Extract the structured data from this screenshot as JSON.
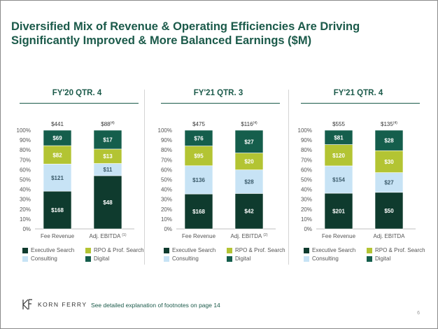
{
  "slide": {
    "title_line1": "Diversified Mix of Revenue & Operating Efficiencies Are Driving",
    "title_line2": "Significantly Improved & More Balanced Earnings ($M)",
    "footnote": "See detailed explanation of footnotes on page 14",
    "logo_text": "KORN FERRY",
    "page_number": "6"
  },
  "colors": {
    "title": "#1b5a4a",
    "executive_search": "#0f3b2e",
    "rpo_prof_search": "#b3c433",
    "consulting": "#c7e3f5",
    "digital": "#155e4c"
  },
  "legend": [
    "Executive Search",
    "RPO & Prof. Search",
    "Consulting",
    "Digital"
  ],
  "chart_data": [
    {
      "type": "bar",
      "stacked": "percent",
      "title": "FY'20 QTR. 4",
      "categories": [
        "Fee Revenue",
        "Adj. EBITDA"
      ],
      "category_superscripts": [
        "",
        "(1)"
      ],
      "totals": [
        "$441",
        "$88"
      ],
      "total_superscripts": [
        "",
        "(4)"
      ],
      "ylim": [
        0,
        100
      ],
      "yticks": [
        "0%",
        "10%",
        "20%",
        "30%",
        "40%",
        "50%",
        "60%",
        "70%",
        "80%",
        "90%",
        "100%"
      ],
      "series": [
        {
          "name": "Executive Search",
          "values": [
            168,
            48
          ],
          "labels": [
            "$168",
            "$48"
          ]
        },
        {
          "name": "Consulting",
          "values": [
            121,
            11
          ],
          "labels": [
            "$121",
            "$11"
          ]
        },
        {
          "name": "RPO & Prof. Search",
          "values": [
            82,
            13
          ],
          "labels": [
            "$82",
            "$13"
          ]
        },
        {
          "name": "Digital",
          "values": [
            69,
            17
          ],
          "labels": [
            "$69",
            "$17"
          ]
        }
      ]
    },
    {
      "type": "bar",
      "stacked": "percent",
      "title": "FY'21 QTR. 3",
      "categories": [
        "Fee Revenue",
        "Adj. EBITDA"
      ],
      "category_superscripts": [
        "",
        "(2)"
      ],
      "totals": [
        "$475",
        "$116"
      ],
      "total_superscripts": [
        "",
        "(4)"
      ],
      "ylim": [
        0,
        100
      ],
      "yticks": [
        "0%",
        "10%",
        "20%",
        "30%",
        "40%",
        "50%",
        "60%",
        "70%",
        "80%",
        "90%",
        "100%"
      ],
      "series": [
        {
          "name": "Executive Search",
          "values": [
            168,
            42
          ],
          "labels": [
            "$168",
            "$42"
          ]
        },
        {
          "name": "Consulting",
          "values": [
            136,
            28
          ],
          "labels": [
            "$136",
            "$28"
          ]
        },
        {
          "name": "RPO & Prof. Search",
          "values": [
            95,
            20
          ],
          "labels": [
            "$95",
            "$20"
          ]
        },
        {
          "name": "Digital",
          "values": [
            76,
            27
          ],
          "labels": [
            "$76",
            "$27"
          ]
        }
      ]
    },
    {
      "type": "bar",
      "stacked": "percent",
      "title": "FY'21 QTR. 4",
      "categories": [
        "Fee Revenue",
        "Adj. EBITDA"
      ],
      "category_superscripts": [
        "",
        ""
      ],
      "totals": [
        "$555",
        "$135"
      ],
      "total_superscripts": [
        "",
        "(4)"
      ],
      "ylim": [
        0,
        100
      ],
      "yticks": [
        "0%",
        "10%",
        "20%",
        "30%",
        "40%",
        "50%",
        "60%",
        "70%",
        "80%",
        "90%",
        "100%"
      ],
      "series": [
        {
          "name": "Executive Search",
          "values": [
            201,
            50
          ],
          "labels": [
            "$201",
            "$50"
          ]
        },
        {
          "name": "Consulting",
          "values": [
            154,
            27
          ],
          "labels": [
            "$154",
            "$27"
          ]
        },
        {
          "name": "RPO & Prof. Search",
          "values": [
            120,
            30
          ],
          "labels": [
            "$120",
            "$30"
          ]
        },
        {
          "name": "Digital",
          "values": [
            81,
            28
          ],
          "labels": [
            "$81",
            "$28"
          ]
        }
      ]
    }
  ]
}
